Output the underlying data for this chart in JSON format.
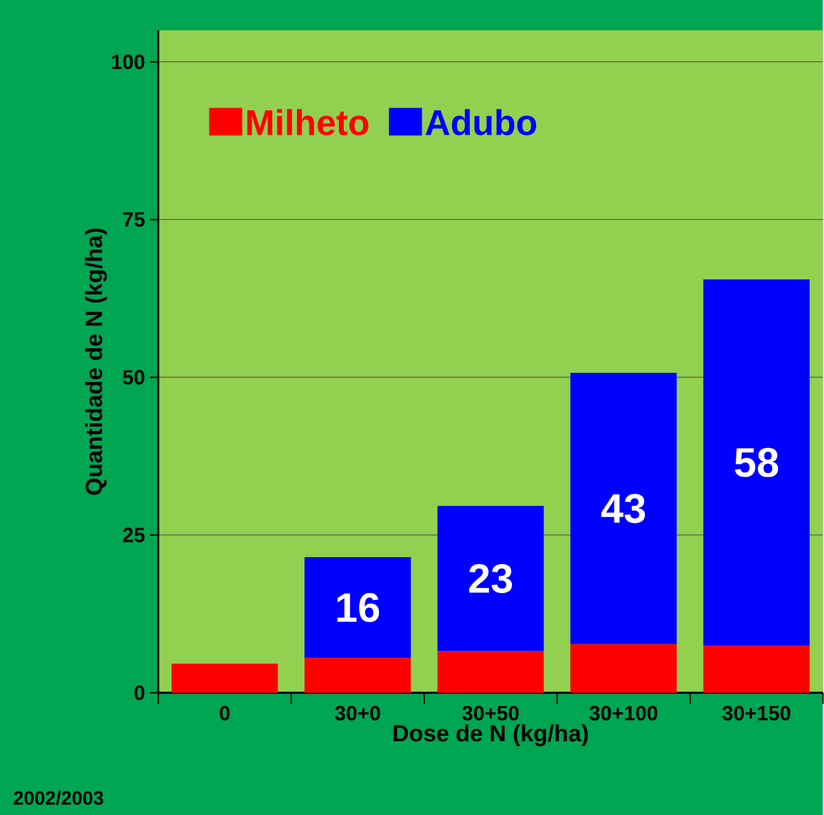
{
  "chart_data": {
    "type": "bar",
    "stacked": true,
    "xlabel": "Dose de N (kg/ha)",
    "ylabel": "Quantidade de N (kg/ha)",
    "categories": [
      "0",
      "30+0",
      "30+50",
      "30+100",
      "30+150"
    ],
    "series": [
      {
        "name": "Milheto",
        "color": "#ff0000",
        "values": [
          4.6,
          5.5,
          6.6,
          7.7,
          7.5
        ]
      },
      {
        "name": "Adubo",
        "color": "#0000ff",
        "values": [
          null,
          16,
          23,
          43,
          58
        ],
        "value_labels": [
          null,
          "16",
          "23",
          "43",
          "58"
        ]
      }
    ],
    "ylim": [
      0,
      105
    ],
    "yticks": [
      0,
      25,
      50,
      75,
      100
    ],
    "grid": "y",
    "legend": "top left",
    "annotations": [
      "2002/2003"
    ]
  }
}
